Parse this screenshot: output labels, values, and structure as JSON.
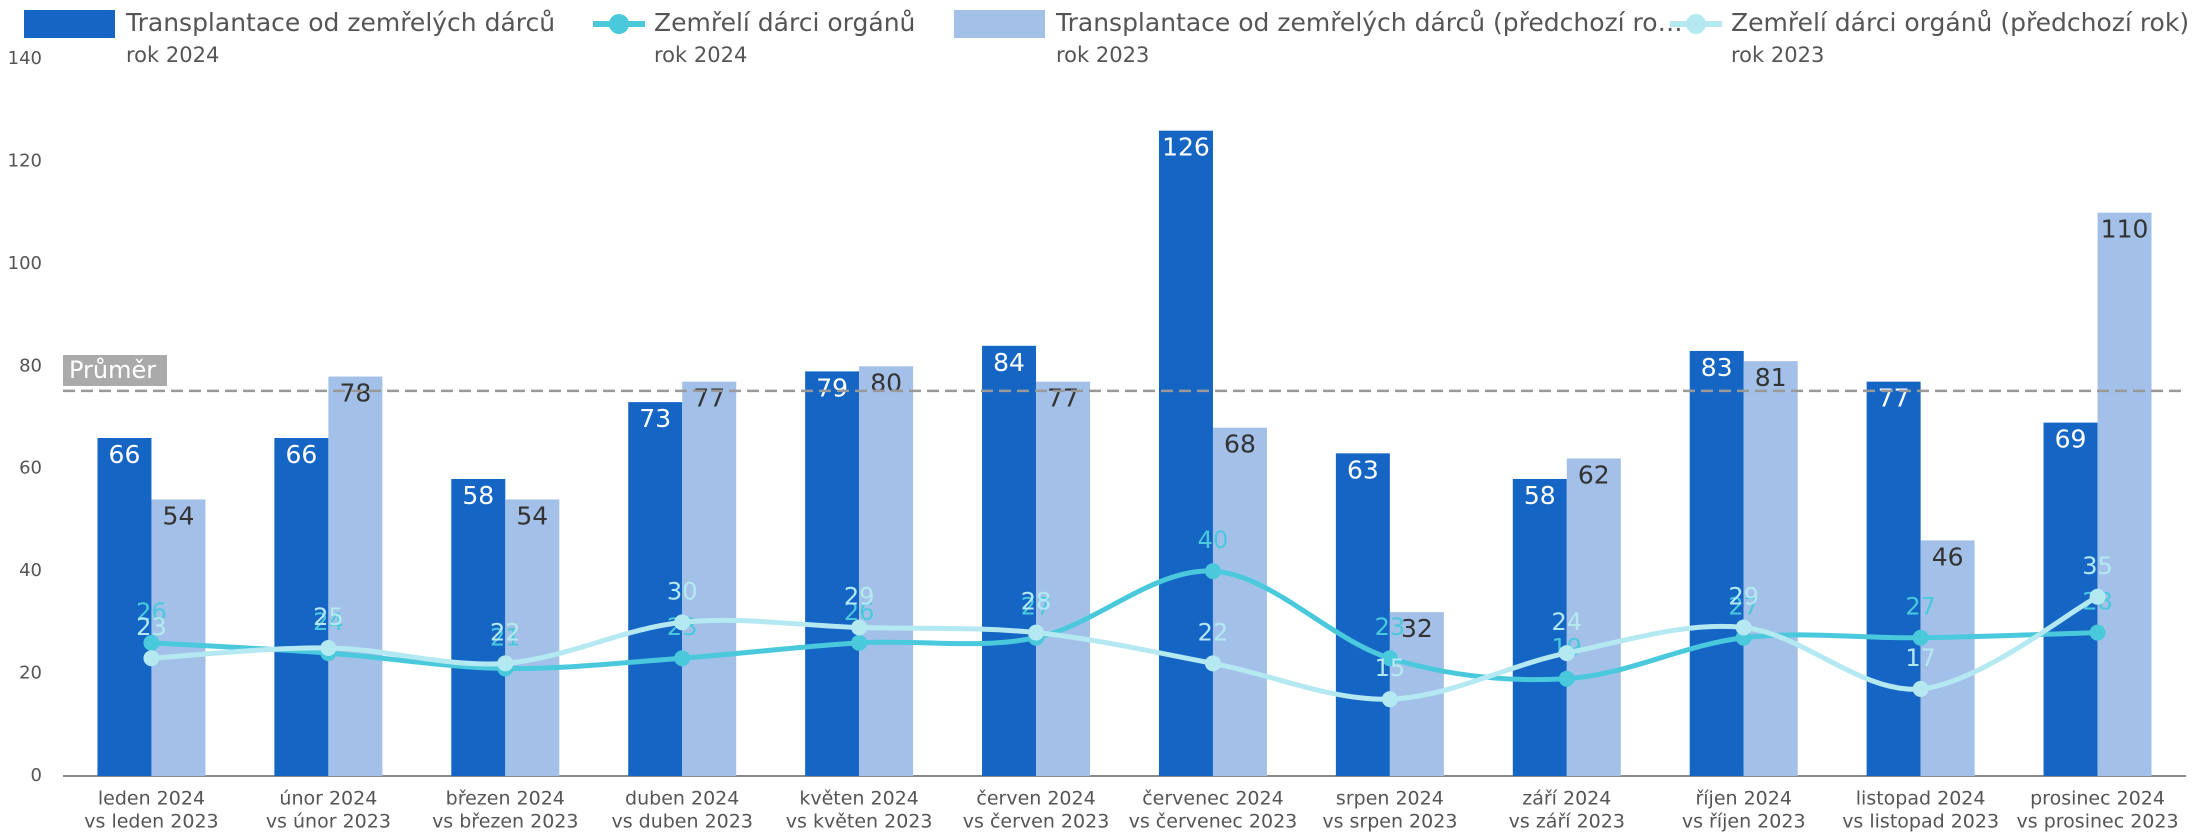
{
  "chart_data": {
    "type": "bar_line",
    "categories": [
      [
        "leden 2024",
        "vs leden 2023"
      ],
      [
        "únor 2024",
        "vs únor 2023"
      ],
      [
        "březen 2024",
        "vs březen 2023"
      ],
      [
        "duben 2024",
        "vs duben 2023"
      ],
      [
        "květen 2024",
        "vs květen 2023"
      ],
      [
        "červen 2024",
        "vs červen 2023"
      ],
      [
        "červenec 2024",
        "vs červenec 2023"
      ],
      [
        "srpen 2024",
        "vs srpen 2023"
      ],
      [
        "září 2024",
        "vs září 2023"
      ],
      [
        "říjen 2024",
        "vs říjen 2023"
      ],
      [
        "listopad 2024",
        "vs listopad 2023"
      ],
      [
        "prosinec 2024",
        "vs prosinec 2023"
      ]
    ],
    "series": [
      {
        "name": "Transplantace od zemřelých dárců",
        "period": "rok 2024",
        "kind": "bar",
        "color": "#1565c5",
        "label_color": "#ffffff",
        "values": [
          66,
          66,
          58,
          73,
          79,
          84,
          126,
          63,
          58,
          83,
          77,
          69
        ]
      },
      {
        "name": "Zemřelí dárci orgánů",
        "period": "rok 2024",
        "kind": "line",
        "color": "#4ac9dc",
        "label_color": "#4ac9dc",
        "values": [
          26,
          24,
          21,
          23,
          26,
          27,
          40,
          23,
          19,
          27,
          27,
          28
        ]
      },
      {
        "name": "Transplantace od zemřelých dárců (předchozí ro…",
        "period": "rok 2023",
        "kind": "bar",
        "color": "#a3c1e8",
        "label_color": "#333333",
        "values": [
          54,
          78,
          54,
          77,
          80,
          77,
          68,
          32,
          62,
          81,
          46,
          110
        ]
      },
      {
        "name": "Zemřelí dárci orgánů (předchozí rok)",
        "period": "rok 2023",
        "kind": "line",
        "color": "#b5e9f2",
        "label_color": "#b5e9f2",
        "values": [
          23,
          25,
          22,
          30,
          29,
          28,
          22,
          15,
          24,
          29,
          17,
          35
        ]
      }
    ],
    "average": {
      "label": "Průměr",
      "value": 75.2
    },
    "ylim": [
      0,
      140
    ],
    "yticks": [
      0,
      20,
      40,
      60,
      80,
      100,
      120,
      140
    ],
    "grid": false
  }
}
